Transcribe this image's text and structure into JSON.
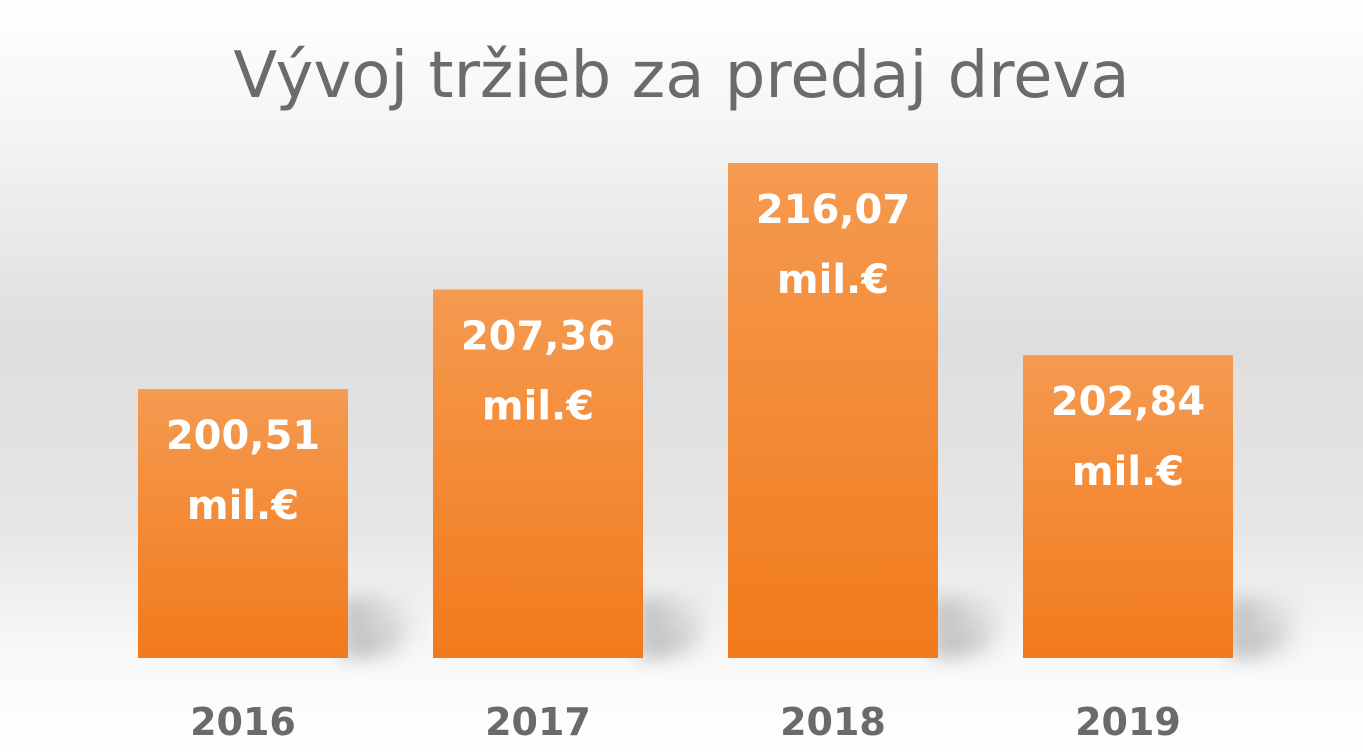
{
  "chart_data": {
    "type": "bar",
    "title": "Vývoj tržieb za predaj dreva",
    "categories": [
      "2016",
      "2017",
      "2018",
      "2019"
    ],
    "values": [
      200.51,
      207.36,
      216.07,
      202.84
    ],
    "data_labels": [
      "200,51",
      "207,36",
      "216,07",
      "202,84"
    ],
    "unit_label": "mil.€",
    "ylim": [
      182,
      220
    ],
    "grid": false,
    "legend": "none",
    "colors": {
      "bar_top": "#f59a50",
      "bar_bottom": "#f27a1c",
      "title": "#6b6b6b",
      "category": "#6a6a6a",
      "data_label": "#ffffff"
    }
  }
}
